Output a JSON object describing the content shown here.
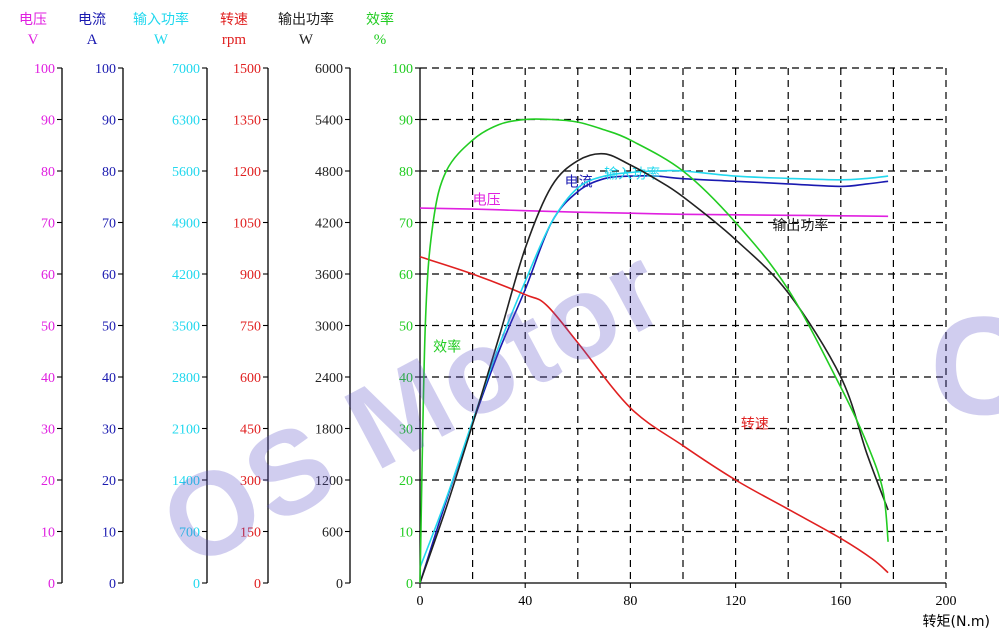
{
  "chart_data": {
    "type": "line",
    "x_axis": {
      "label": "转矩(N.m)",
      "min": 0,
      "max": 200,
      "ticks": [
        0,
        40,
        80,
        120,
        160,
        200
      ],
      "color": "#000000"
    },
    "y_axes": [
      {
        "key": "voltage",
        "name": "电压",
        "unit": "V",
        "color": "#e020e0",
        "min": 0,
        "max": 100,
        "ticks": [
          0,
          10,
          20,
          30,
          40,
          50,
          60,
          70,
          80,
          90,
          100
        ]
      },
      {
        "key": "current",
        "name": "电流",
        "unit": "A",
        "color": "#1a1ab0",
        "min": 0,
        "max": 100,
        "ticks": [
          0,
          10,
          20,
          30,
          40,
          50,
          60,
          70,
          80,
          90,
          100
        ]
      },
      {
        "key": "input_power",
        "name": "输入功率",
        "unit": "W",
        "color": "#22d8ee",
        "min": 0,
        "max": 7000,
        "ticks": [
          0,
          700,
          1400,
          2100,
          2800,
          3500,
          4200,
          4900,
          5600,
          6300,
          7000
        ]
      },
      {
        "key": "speed",
        "name": "转速",
        "unit": "rpm",
        "color": "#e02020",
        "min": 0,
        "max": 1500,
        "ticks": [
          0,
          150,
          300,
          450,
          600,
          750,
          900,
          1050,
          1200,
          1350,
          1500
        ]
      },
      {
        "key": "output_power",
        "name": "输出功率",
        "unit": "W",
        "color": "#222222",
        "min": 0,
        "max": 6000,
        "ticks": [
          0,
          600,
          1200,
          1800,
          2400,
          3000,
          3600,
          4200,
          4800,
          5400,
          6000
        ]
      },
      {
        "key": "efficiency",
        "name": "效率",
        "unit": "%",
        "color": "#22cc22",
        "min": 0,
        "max": 100,
        "ticks": [
          0,
          10,
          20,
          30,
          40,
          50,
          60,
          70,
          80,
          90,
          100
        ]
      }
    ],
    "grid": true,
    "series": [
      {
        "name": "电压",
        "axis": "voltage",
        "color": "#e020e0",
        "label": {
          "text": "电压",
          "x": 20,
          "y": 73.5
        },
        "x": [
          0,
          20,
          40,
          60,
          80,
          100,
          120,
          140,
          160,
          178
        ],
        "values": [
          72.8,
          72.6,
          72.3,
          72.0,
          71.8,
          71.6,
          71.5,
          71.4,
          71.3,
          71.2
        ]
      },
      {
        "name": "电流",
        "axis": "current",
        "color": "#1a1ab0",
        "label": {
          "text": "电流",
          "x": 55,
          "y": 77.0
        },
        "x": [
          0,
          10,
          20,
          30,
          40,
          50,
          60,
          70,
          80,
          90,
          100,
          120,
          140,
          160,
          170,
          178
        ],
        "values": [
          0,
          16,
          31,
          45,
          57,
          70,
          76,
          78.5,
          79,
          79,
          78.5,
          78,
          77.5,
          77,
          77.5,
          78
        ]
      },
      {
        "name": "输入功率",
        "axis": "input_power",
        "color": "#22d8ee",
        "label": {
          "text": "输入功率",
          "x": 70,
          "y": 78.5
        },
        "x": [
          0,
          10,
          20,
          30,
          40,
          50,
          60,
          70,
          80,
          90,
          100,
          120,
          140,
          160,
          170,
          178
        ],
        "values": [
          210,
          1150,
          2200,
          3220,
          4100,
          4900,
          5370,
          5530,
          5580,
          5600,
          5600,
          5530,
          5500,
          5480,
          5500,
          5530
        ]
      },
      {
        "name": "转速",
        "axis": "speed",
        "color": "#e02020",
        "label": {
          "text": "转速",
          "x": 122,
          "y": 30
        },
        "x": [
          0,
          20,
          40,
          48,
          60,
          80,
          100,
          120,
          140,
          160,
          172,
          178
        ],
        "values": [
          950,
          900,
          840,
          810,
          700,
          510,
          400,
          300,
          215,
          130,
          70,
          30
        ]
      },
      {
        "name": "输出功率",
        "axis": "output_power",
        "color": "#222222",
        "label": {
          "text": "输出功率",
          "x": 134,
          "y": 68.5
        },
        "x": [
          0,
          10,
          20,
          30,
          40,
          50,
          60,
          70,
          80,
          90,
          100,
          120,
          140,
          160,
          170,
          178
        ],
        "values": [
          0,
          880,
          1850,
          2860,
          3900,
          4620,
          4920,
          5000,
          4870,
          4700,
          4500,
          4000,
          3380,
          2400,
          1500,
          850
        ]
      },
      {
        "name": "效率",
        "axis": "efficiency",
        "color": "#22cc22",
        "label": {
          "text": "效率",
          "x": 5,
          "y": 45
        },
        "x": [
          0,
          2,
          5,
          10,
          20,
          30,
          40,
          50,
          60,
          70,
          80,
          100,
          120,
          140,
          160,
          170,
          176,
          178
        ],
        "values": [
          0,
          50,
          70,
          80,
          86,
          89,
          90,
          90,
          89.5,
          88,
          86,
          80,
          70,
          57,
          38,
          27,
          18,
          8
        ]
      }
    ]
  },
  "watermark": {
    "text": "OS Motor",
    "trailing": "C"
  }
}
